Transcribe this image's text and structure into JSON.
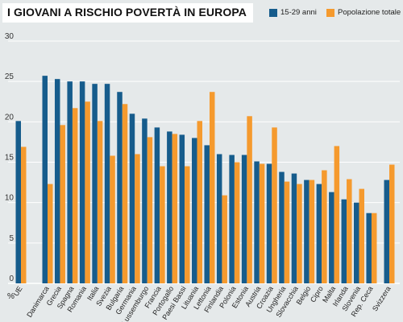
{
  "colors": {
    "background": "#e5e9ea",
    "series_1": "#165c8c",
    "series_2": "#f59a2e",
    "grid": "#ffffff"
  },
  "chart_data": {
    "type": "bar",
    "title": "I GIOVANI A RISCHIO POVERTÀ IN EUROPA",
    "ylabel": "%",
    "ylim": [
      0,
      30
    ],
    "yticks": [
      0,
      5,
      10,
      15,
      20,
      25,
      30
    ],
    "grid": true,
    "legend_position": "top-right",
    "categories": [
      "UE",
      "Danimarca",
      "Grecia",
      "Spagna",
      "Romania",
      "Italia",
      "Svezia",
      "Bulgaria",
      "Germania",
      "Lussemburgo",
      "Francia",
      "Portogallo",
      "Paesi Bassi",
      "Lituania",
      "Lettonia",
      "Finlandia",
      "Polonia",
      "Estonia",
      "Austria",
      "Croazia",
      "Ungheria",
      "Slovacchia",
      "Belgio",
      "Cipro",
      "Malta",
      "Irlanda",
      "Slovenia",
      "Rep. Ceca",
      "Svizzera"
    ],
    "series": [
      {
        "name": "15-29 anni",
        "values": [
          20.1,
          25.7,
          25.3,
          25.0,
          25.0,
          24.7,
          24.7,
          23.7,
          21.0,
          20.4,
          19.3,
          18.8,
          18.4,
          18.0,
          17.1,
          16.0,
          15.9,
          15.9,
          15.1,
          14.8,
          13.8,
          13.6,
          12.8,
          12.3,
          11.3,
          10.4,
          10.0,
          8.7,
          12.8
        ]
      },
      {
        "name": "Popolazione totale",
        "values": [
          16.9,
          12.3,
          19.6,
          21.7,
          22.5,
          20.1,
          15.8,
          22.2,
          16.0,
          18.1,
          14.5,
          18.5,
          14.5,
          20.1,
          23.7,
          10.9,
          15.0,
          20.7,
          14.8,
          19.3,
          12.6,
          12.3,
          12.8,
          14.0,
          17.0,
          12.9,
          11.7,
          8.7,
          14.7
        ]
      }
    ]
  }
}
